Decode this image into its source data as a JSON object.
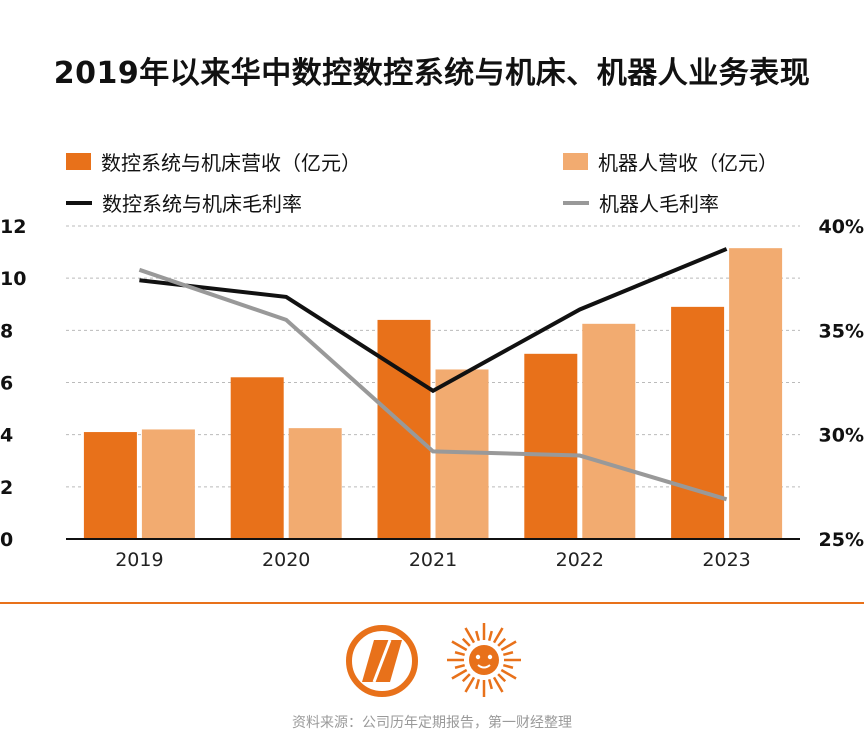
{
  "colors": {
    "orange_dark": "#e8711a",
    "orange_light": "#f2ab70",
    "line_black": "#111111",
    "line_gray": "#999999",
    "divider": "#e8711a",
    "grid": "#bbbbbb"
  },
  "legend": {
    "cnc_revenue": "数控系统与机床营收（亿元）",
    "robot_revenue": "机器人营收（亿元）",
    "cnc_margin": "数控系统与机床毛利率",
    "robot_margin": "机器人毛利率"
  },
  "source": "资料来源：公司历年定期报告，第一财经整理",
  "logos": {
    "left": "compass-logo-icon",
    "right": "sun-lion-logo-icon"
  },
  "chart_data": {
    "type": "bar",
    "title": "2019年以来华中数控数控系统与机床、机器人业务表现",
    "categories": [
      "2019",
      "2020",
      "2021",
      "2022",
      "2023"
    ],
    "series": [
      {
        "name": "数控系统与机床营收（亿元）",
        "type": "bar",
        "axis": "left",
        "color": "#e8711a",
        "values": [
          4.1,
          6.2,
          8.4,
          7.1,
          8.9
        ]
      },
      {
        "name": "机器人营收（亿元）",
        "type": "bar",
        "axis": "left",
        "color": "#f2ab70",
        "values": [
          4.2,
          4.25,
          6.5,
          8.25,
          11.15
        ]
      },
      {
        "name": "数控系统与机床毛利率",
        "type": "line",
        "axis": "right",
        "color": "#111111",
        "values": [
          37.4,
          36.6,
          32.1,
          36.0,
          38.9
        ]
      },
      {
        "name": "机器人毛利率",
        "type": "line",
        "axis": "right",
        "color": "#999999",
        "values": [
          37.9,
          35.5,
          29.2,
          29.0,
          26.9
        ]
      }
    ],
    "y_left": {
      "ylim": [
        0,
        12
      ],
      "ticks": [
        "0",
        "2",
        "4",
        "6",
        "8",
        "10",
        "12"
      ]
    },
    "y_right": {
      "ylim": [
        25,
        40
      ],
      "ticks": [
        "25%",
        "30%",
        "35%",
        "40%"
      ]
    },
    "grid": true,
    "legend_position": "top"
  }
}
